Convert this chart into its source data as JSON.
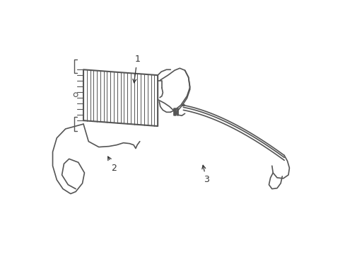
{
  "background_color": "#ffffff",
  "line_color": "#555555",
  "line_width": 1.3,
  "label_color": "#333333",
  "label_fontsize": 9,
  "figsize": [
    4.89,
    3.6
  ],
  "dpi": 100
}
